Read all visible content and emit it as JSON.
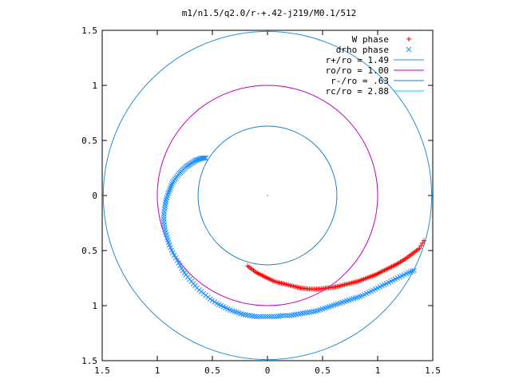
{
  "chart_data": {
    "type": "scatter",
    "title": "m1/n1.5/q2.0/r-+.42-j219/M0.1/512",
    "xlabel": "",
    "ylabel": "",
    "xlim": [
      -1.5,
      1.5
    ],
    "ylim": [
      -1.5,
      1.5
    ],
    "x_tick_labels": [
      "1.5",
      "1",
      "0.5",
      "0",
      "0.5",
      "1",
      "1.5"
    ],
    "y_tick_labels": [
      "1.5",
      "1",
      "0.5",
      "0",
      "0.5",
      "1",
      "1.5"
    ],
    "tick_values": [
      -1.5,
      -1,
      -0.5,
      0,
      0.5,
      1,
      1.5
    ],
    "grid": false,
    "legend_position": "top-right",
    "legend": [
      {
        "label": "W phase",
        "kind": "marker",
        "marker": "+",
        "color": "#ff0000"
      },
      {
        "label": "drho phase",
        "kind": "marker",
        "marker": "x",
        "color": "#1e90ff"
      },
      {
        "label": "r+/ro = 1.49",
        "kind": "line",
        "color": "#2a8fd0"
      },
      {
        "label": "ro/ro = 1.00",
        "kind": "line",
        "color": "#c000c0"
      },
      {
        "label": "r-/ro = .63",
        "kind": "line",
        "color": "#1f7fc0"
      },
      {
        "label": "rc/ro = 2.88",
        "kind": "line",
        "color": "#00d8e0"
      }
    ],
    "circles": [
      {
        "name": "r+/ro",
        "radius": 1.49,
        "color": "#2a8fd0"
      },
      {
        "name": "ro/ro",
        "radius": 1.0,
        "color": "#c000c0"
      },
      {
        "name": "r-/ro",
        "radius": 0.63,
        "color": "#1f7fc0"
      }
    ],
    "series": [
      {
        "name": "W phase",
        "marker": "+",
        "color": "#ff0000",
        "x": [
          -0.18,
          -0.14,
          -0.1,
          -0.06,
          -0.02,
          0.02,
          0.06,
          0.1,
          0.14,
          0.18,
          0.22,
          0.26,
          0.3,
          0.34,
          0.38,
          0.42,
          0.46,
          0.5,
          0.54,
          0.58,
          0.62,
          0.66,
          0.7,
          0.74,
          0.78,
          0.82,
          0.86,
          0.9,
          0.94,
          0.98,
          1.02,
          1.06,
          1.1,
          1.14,
          1.18,
          1.22,
          1.26,
          1.3,
          1.34,
          1.38,
          1.42
        ],
        "y": [
          -0.64,
          -0.67,
          -0.7,
          -0.72,
          -0.74,
          -0.76,
          -0.78,
          -0.79,
          -0.8,
          -0.81,
          -0.82,
          -0.83,
          -0.84,
          -0.845,
          -0.85,
          -0.85,
          -0.85,
          -0.845,
          -0.84,
          -0.835,
          -0.83,
          -0.82,
          -0.81,
          -0.8,
          -0.79,
          -0.78,
          -0.765,
          -0.75,
          -0.735,
          -0.72,
          -0.7,
          -0.68,
          -0.66,
          -0.64,
          -0.62,
          -0.595,
          -0.57,
          -0.54,
          -0.51,
          -0.48,
          -0.41
        ]
      },
      {
        "name": "drho phase",
        "marker": "x",
        "color": "#1e90ff",
        "x": [
          -0.56,
          -0.59,
          -0.62,
          -0.65,
          -0.68,
          -0.71,
          -0.74,
          -0.77,
          -0.8,
          -0.83,
          -0.86,
          -0.88,
          -0.9,
          -0.92,
          -0.93,
          -0.94,
          -0.94,
          -0.93,
          -0.91,
          -0.89,
          -0.86,
          -0.82,
          -0.78,
          -0.74,
          -0.69,
          -0.64,
          -0.58,
          -0.52,
          -0.46,
          -0.4,
          -0.34,
          -0.28,
          -0.22,
          -0.16,
          -0.1,
          -0.04,
          0.02,
          0.08,
          0.14,
          0.2,
          0.26,
          0.32,
          0.38,
          0.44,
          0.5,
          0.56,
          0.62,
          0.68,
          0.74,
          0.8,
          0.86,
          0.92,
          0.98,
          1.04,
          1.1,
          1.16,
          1.22,
          1.28,
          1.33
        ],
        "y": [
          0.34,
          0.34,
          0.33,
          0.32,
          0.3,
          0.28,
          0.26,
          0.23,
          0.2,
          0.16,
          0.12,
          0.07,
          0.02,
          -0.04,
          -0.1,
          -0.17,
          -0.24,
          -0.31,
          -0.38,
          -0.45,
          -0.52,
          -0.59,
          -0.66,
          -0.72,
          -0.78,
          -0.84,
          -0.89,
          -0.94,
          -0.98,
          -1.01,
          -1.04,
          -1.06,
          -1.08,
          -1.09,
          -1.1,
          -1.1,
          -1.1,
          -1.1,
          -1.09,
          -1.09,
          -1.08,
          -1.07,
          -1.06,
          -1.05,
          -1.03,
          -1.01,
          -0.99,
          -0.97,
          -0.95,
          -0.93,
          -0.91,
          -0.88,
          -0.85,
          -0.82,
          -0.79,
          -0.76,
          -0.73,
          -0.7,
          -0.68
        ]
      }
    ],
    "center_marker": {
      "x": 0,
      "y": 0,
      "color": "#1e90ff"
    }
  }
}
